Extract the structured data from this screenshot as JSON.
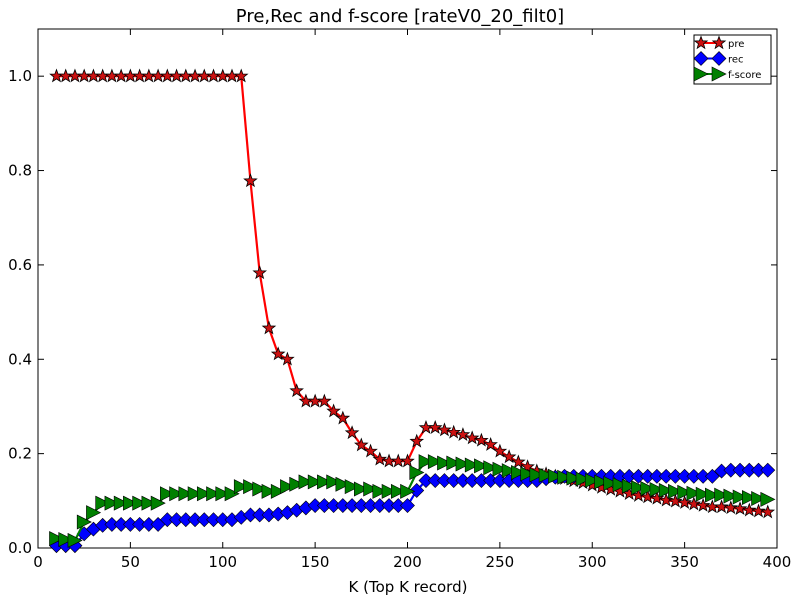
{
  "chart_data": {
    "type": "line",
    "title": "Pre,Rec and f-score [rateV0_20_filt0]",
    "xlabel": "K (Top K record)",
    "ylabel": "",
    "xlim": [
      0,
      400
    ],
    "ylim": [
      0,
      1.1
    ],
    "xticks": [
      0,
      50,
      100,
      150,
      200,
      250,
      300,
      350,
      400
    ],
    "yticks": [
      0.0,
      0.2,
      0.4,
      0.6,
      0.8,
      1.0
    ],
    "xtick_labels": [
      "0",
      "50",
      "100",
      "150",
      "200",
      "250",
      "300",
      "350",
      "400"
    ],
    "ytick_labels": [
      "0.0",
      "0.2",
      "0.4",
      "0.6",
      "0.8",
      "1.0"
    ],
    "grid": false,
    "legend_position": "top-right",
    "x": [
      10,
      15,
      20,
      25,
      30,
      35,
      40,
      45,
      50,
      55,
      60,
      65,
      70,
      75,
      80,
      85,
      90,
      95,
      100,
      105,
      110,
      115,
      120,
      125,
      130,
      135,
      140,
      145,
      150,
      155,
      160,
      165,
      170,
      175,
      180,
      185,
      190,
      195,
      200,
      205,
      210,
      215,
      220,
      225,
      230,
      235,
      240,
      245,
      250,
      255,
      260,
      265,
      270,
      275,
      280,
      285,
      290,
      295,
      300,
      305,
      310,
      315,
      320,
      325,
      330,
      335,
      340,
      345,
      350,
      355,
      360,
      365,
      370,
      375,
      380,
      385,
      390,
      395
    ],
    "series": [
      {
        "name": "pre",
        "color": "#ff0000",
        "marker_color": "#cc1111",
        "marker": "star",
        "values": [
          1.0,
          1.0,
          1.0,
          1.0,
          1.0,
          1.0,
          1.0,
          1.0,
          1.0,
          1.0,
          1.0,
          1.0,
          1.0,
          1.0,
          1.0,
          1.0,
          1.0,
          1.0,
          1.0,
          1.0,
          1.0,
          0.778,
          0.583,
          0.466,
          0.411,
          0.4,
          0.333,
          0.311,
          0.311,
          0.311,
          0.29,
          0.275,
          0.244,
          0.218,
          0.205,
          0.188,
          0.184,
          0.184,
          0.184,
          0.226,
          0.255,
          0.255,
          0.25,
          0.245,
          0.24,
          0.233,
          0.228,
          0.219,
          0.205,
          0.193,
          0.182,
          0.172,
          0.163,
          0.157,
          0.152,
          0.147,
          0.142,
          0.138,
          0.133,
          0.128,
          0.124,
          0.12,
          0.115,
          0.111,
          0.108,
          0.105,
          0.101,
          0.099,
          0.096,
          0.093,
          0.09,
          0.087,
          0.087,
          0.085,
          0.083,
          0.08,
          0.078,
          0.076
        ]
      },
      {
        "name": "rec",
        "color": "#0000ff",
        "marker_color": "#0000ff",
        "marker": "diamond",
        "values": [
          0.005,
          0.005,
          0.005,
          0.03,
          0.04,
          0.048,
          0.05,
          0.05,
          0.05,
          0.05,
          0.05,
          0.05,
          0.06,
          0.06,
          0.06,
          0.06,
          0.06,
          0.06,
          0.06,
          0.06,
          0.065,
          0.07,
          0.07,
          0.07,
          0.072,
          0.075,
          0.08,
          0.085,
          0.09,
          0.09,
          0.09,
          0.09,
          0.09,
          0.09,
          0.09,
          0.09,
          0.09,
          0.09,
          0.09,
          0.122,
          0.143,
          0.143,
          0.143,
          0.143,
          0.143,
          0.143,
          0.143,
          0.143,
          0.143,
          0.143,
          0.143,
          0.143,
          0.143,
          0.147,
          0.15,
          0.152,
          0.152,
          0.152,
          0.152,
          0.152,
          0.152,
          0.152,
          0.152,
          0.152,
          0.152,
          0.152,
          0.152,
          0.152,
          0.152,
          0.152,
          0.152,
          0.152,
          0.163,
          0.165,
          0.165,
          0.165,
          0.165,
          0.165
        ]
      },
      {
        "name": "f-score",
        "color": "#008000",
        "marker_color": "#008000",
        "marker": "triangle-right",
        "values": [
          0.02,
          0.018,
          0.016,
          0.055,
          0.075,
          0.095,
          0.095,
          0.095,
          0.095,
          0.095,
          0.095,
          0.095,
          0.115,
          0.115,
          0.115,
          0.115,
          0.115,
          0.115,
          0.115,
          0.115,
          0.13,
          0.13,
          0.125,
          0.12,
          0.12,
          0.13,
          0.135,
          0.14,
          0.14,
          0.14,
          0.14,
          0.135,
          0.13,
          0.125,
          0.125,
          0.12,
          0.12,
          0.12,
          0.12,
          0.16,
          0.183,
          0.183,
          0.18,
          0.18,
          0.178,
          0.176,
          0.174,
          0.17,
          0.167,
          0.164,
          0.16,
          0.157,
          0.155,
          0.154,
          0.152,
          0.15,
          0.148,
          0.146,
          0.143,
          0.14,
          0.137,
          0.134,
          0.131,
          0.128,
          0.126,
          0.124,
          0.122,
          0.12,
          0.118,
          0.116,
          0.114,
          0.112,
          0.112,
          0.11,
          0.108,
          0.107,
          0.105,
          0.103
        ]
      }
    ]
  }
}
